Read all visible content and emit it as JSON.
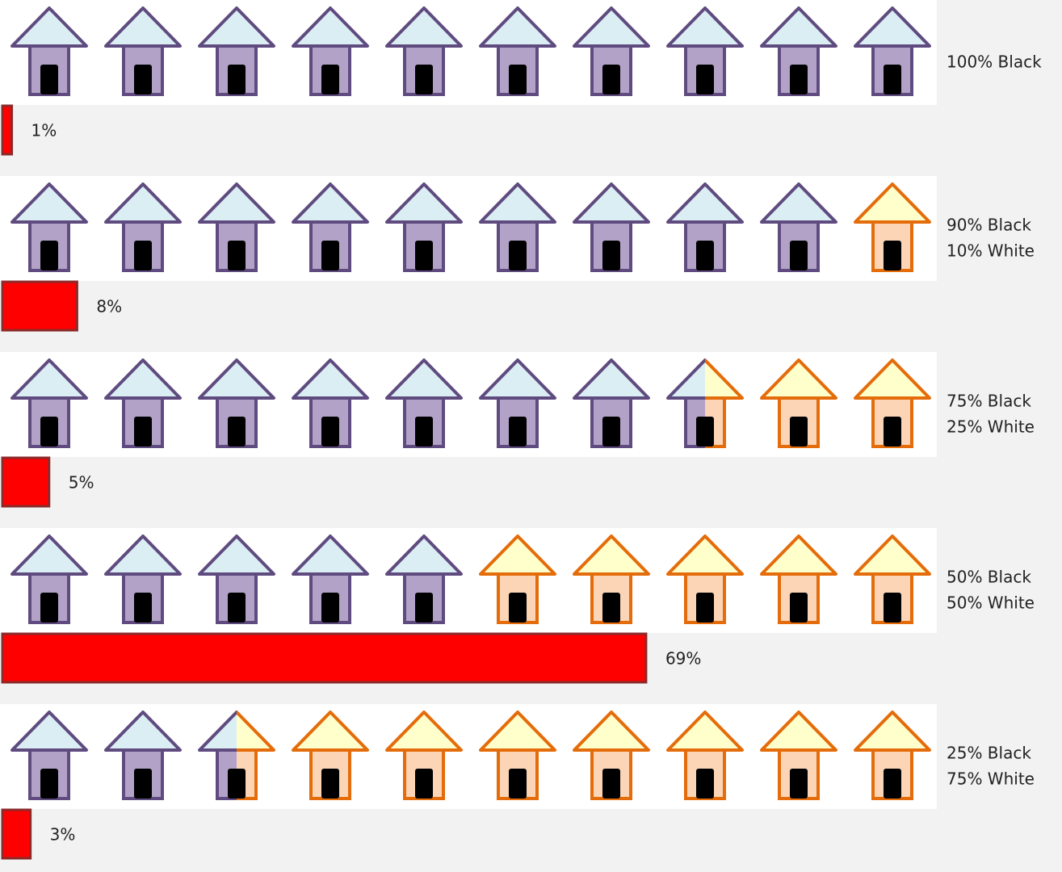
{
  "chart_data": {
    "type": "pictogram",
    "labels": [
      [
        "100% Black"
      ],
      [
        "90% Black",
        "10% White"
      ],
      [
        "75% Black",
        "25% White"
      ],
      [
        "50% Black",
        "50% White"
      ],
      [
        "25% Black",
        "75% White"
      ]
    ],
    "black_share": [
      100,
      90,
      75,
      50,
      25
    ],
    "values": [
      1,
      8,
      5,
      69,
      3
    ],
    "value_labels": [
      "1%",
      "8%",
      "5%",
      "69%",
      "3%"
    ],
    "xlim": [
      0,
      100
    ],
    "color": "#ff0000",
    "black_colors": {
      "roof": "#dbeef4",
      "body": "#b3a2c7",
      "stroke": "#5f4b7f"
    },
    "white_colors": {
      "roof": "#ffffcc",
      "body": "#fbd5b5",
      "stroke": "#e46c0a"
    }
  }
}
